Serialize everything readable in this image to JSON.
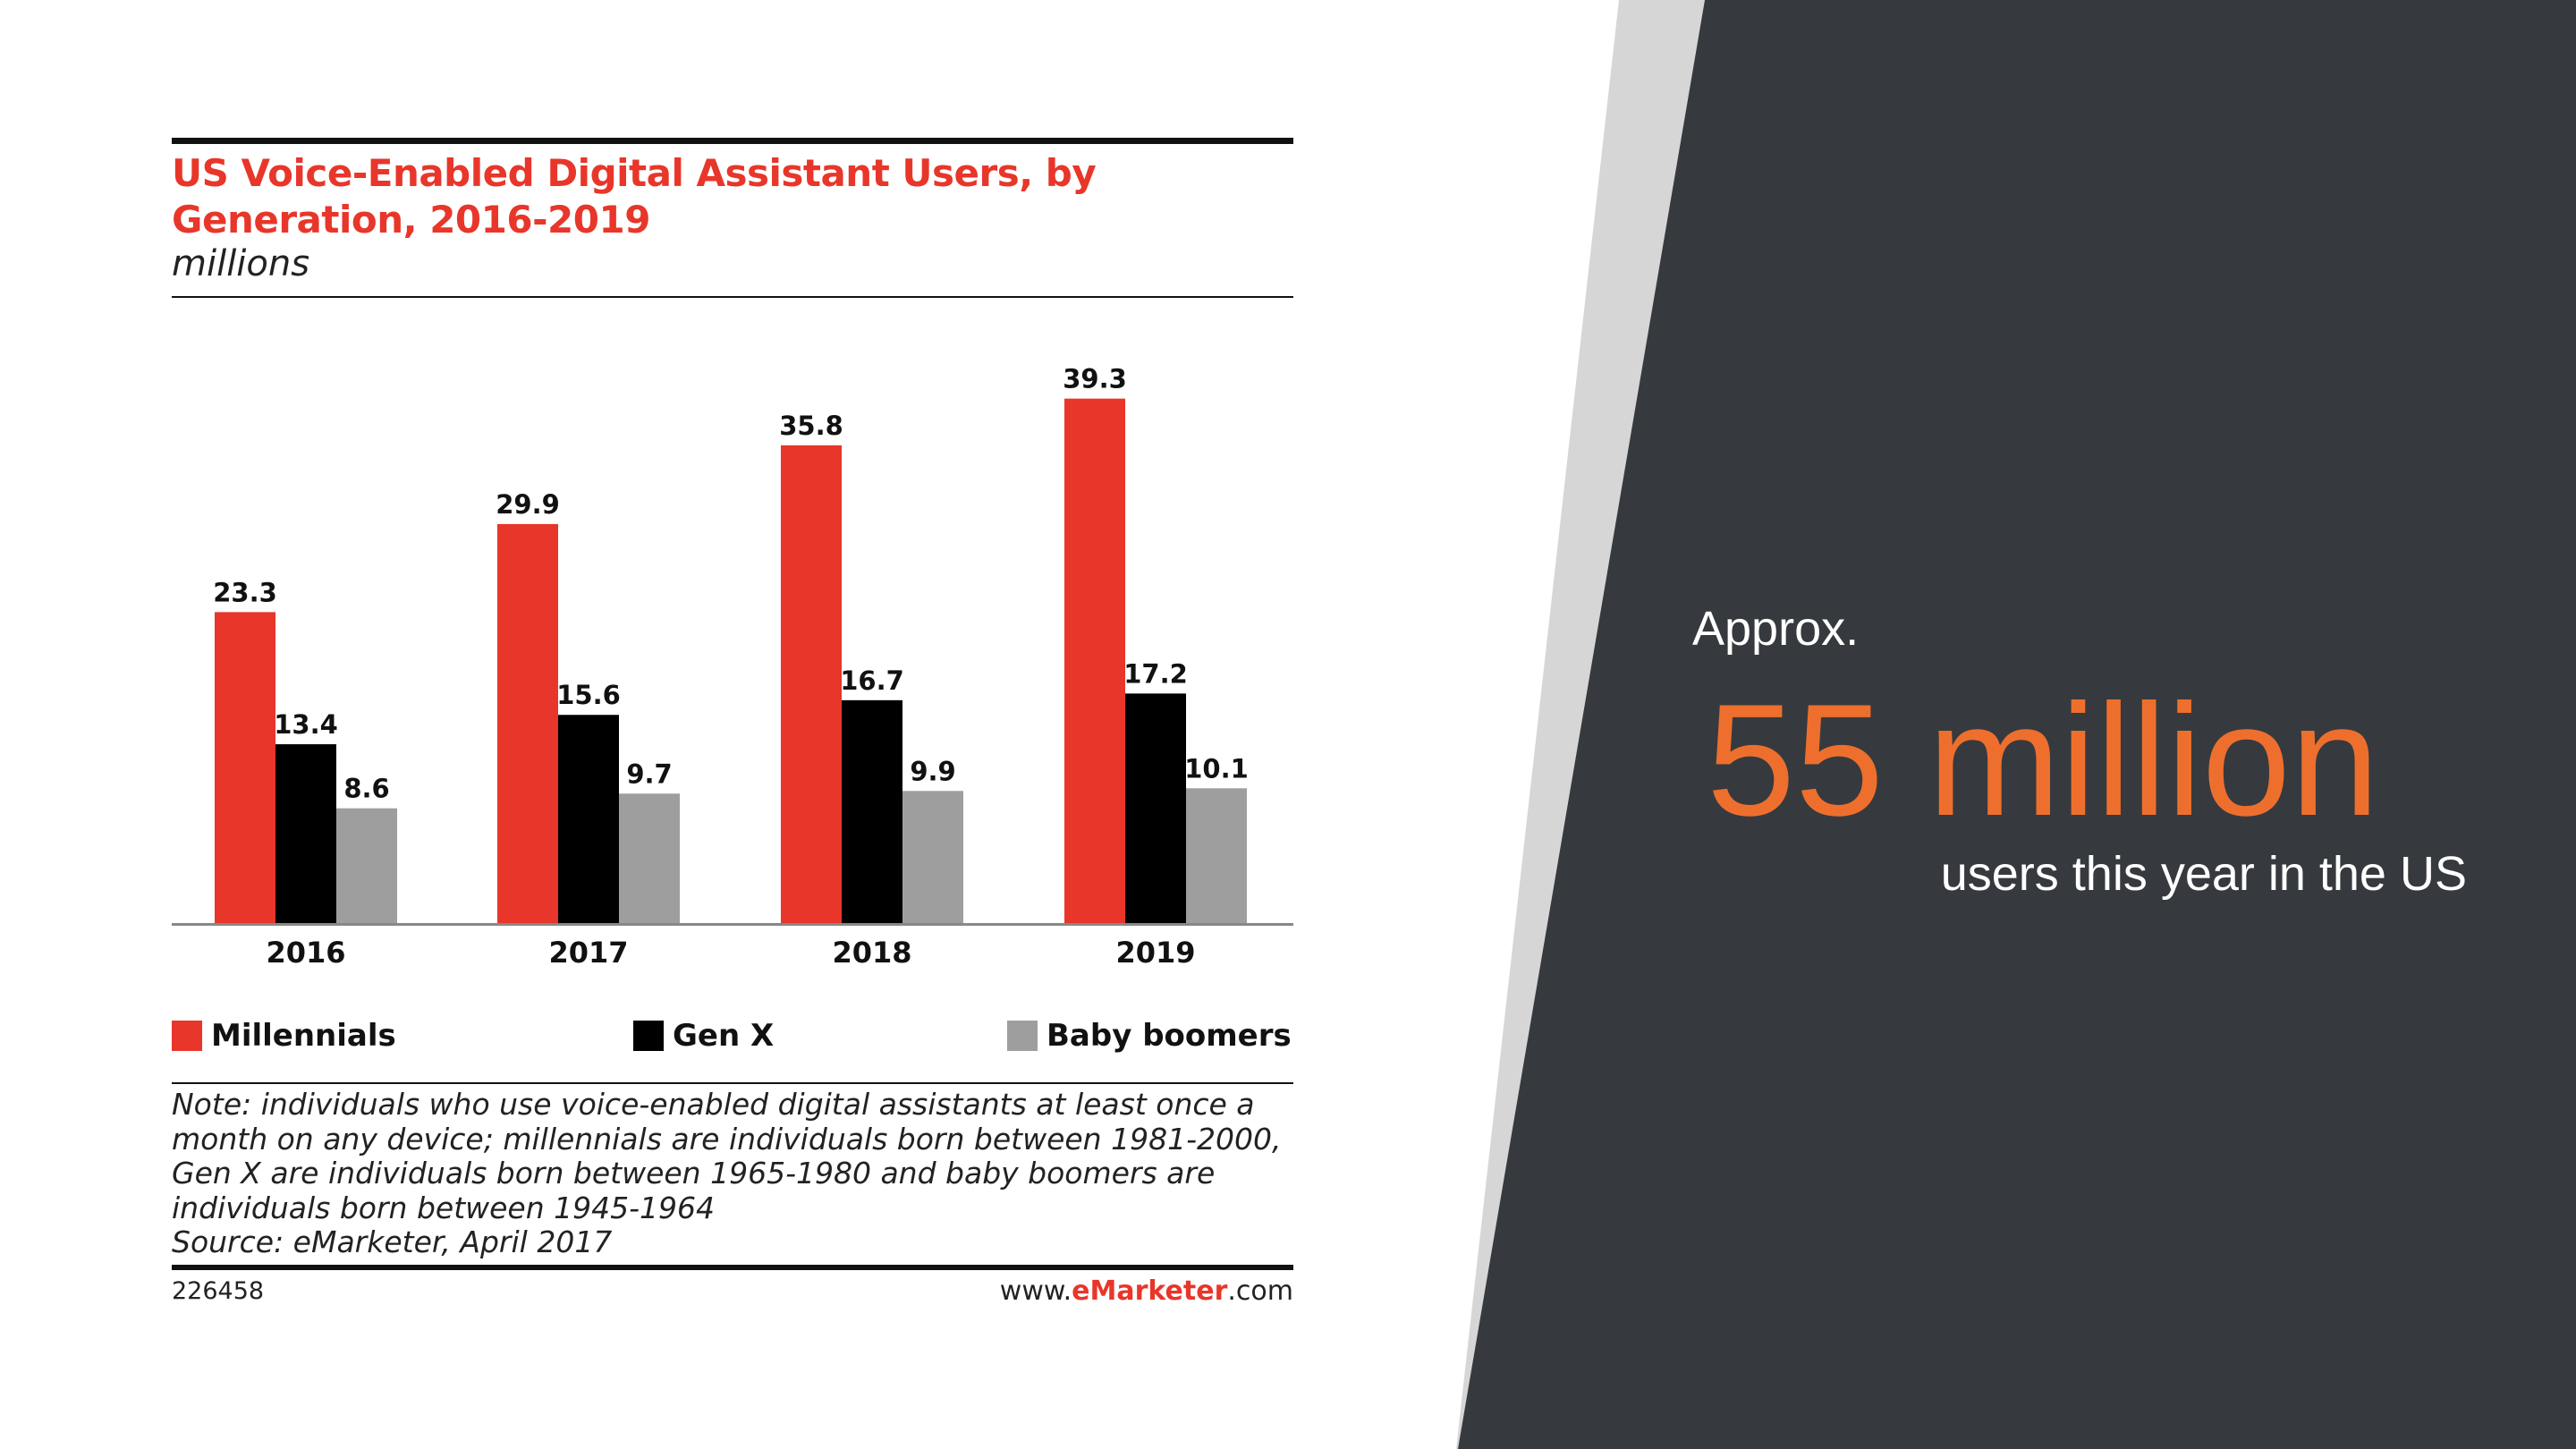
{
  "colors": {
    "background": "#ffffff",
    "stripe": "#d6d6d6",
    "dark_panel": "#363a3e",
    "accent_orange": "#ee6f2d",
    "millennials": "#e8362a",
    "gen_x": "#000000",
    "baby_boomers": "#9e9e9e"
  },
  "chart": {
    "title": "US Voice-Enabled Digital Assistant Users, by Generation, 2016-2019",
    "subtitle": "millions",
    "note": [
      "Note: individuals who use voice-enabled digital assistants at least once a",
      "month on any device; millennials are individuals born between 1981-2000,",
      "Gen X are individuals born between 1965-1980 and baby boomers are",
      "individuals born between 1945-1964",
      "Source: eMarketer, April 2017"
    ],
    "chart_id": "226458",
    "site_prefix": "www.",
    "site_brand": "eMarketer",
    "site_suffix": ".com"
  },
  "chart_data": {
    "type": "bar",
    "title": "US Voice-Enabled Digital Assistant Users, by Generation, 2016-2019",
    "subtitle": "millions",
    "xlabel": "",
    "ylabel": "",
    "categories": [
      "2016",
      "2017",
      "2018",
      "2019"
    ],
    "series": [
      {
        "name": "Millennials",
        "color": "#e8362a",
        "values": [
          23.3,
          29.9,
          35.8,
          39.3
        ]
      },
      {
        "name": "Gen X",
        "color": "#000000",
        "values": [
          13.4,
          15.6,
          16.7,
          17.2
        ]
      },
      {
        "name": "Baby boomers",
        "color": "#9e9e9e",
        "values": [
          8.6,
          9.7,
          9.9,
          10.1
        ]
      }
    ],
    "ylim": [
      0,
      45
    ],
    "grid": false,
    "legend": "bottom",
    "data_labels": true
  },
  "stat": {
    "approx_label": "Approx.",
    "value": "55 million",
    "caption": "users this year in the US"
  }
}
